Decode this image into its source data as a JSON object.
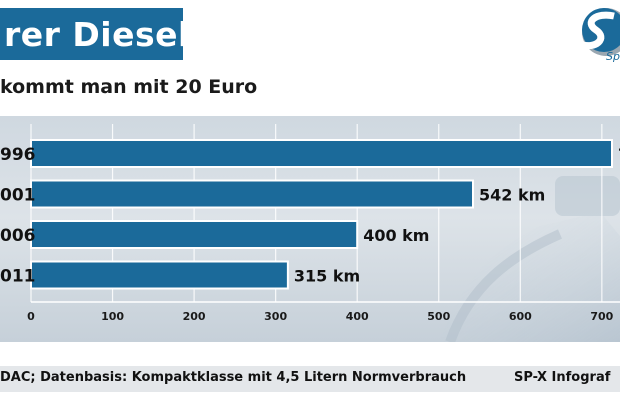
{
  "header": {
    "title": "rer Diesel",
    "subtitle": "kommt man mit 20 Euro",
    "logo_text": "Sp"
  },
  "footer": {
    "source": "DAC; Datenbasis: Kompaktklasse mit 4,5 Litern Normverbrauch",
    "credit": "SP-X Infograf"
  },
  "colors": {
    "title_bg": "#1b6a9a",
    "bar": "#1b6a9a",
    "bar_outline": "#ffffff"
  },
  "chart_data": {
    "type": "bar",
    "orientation": "horizontal",
    "categories": [
      "996",
      "001",
      "006",
      "011"
    ],
    "values": [
      720,
      542,
      400,
      315
    ],
    "labels": [
      "7",
      "542 km",
      "400 km",
      "315 km"
    ],
    "unit": "km",
    "xlim": [
      0,
      720
    ],
    "xticks": [
      0,
      100,
      200,
      300,
      400,
      500,
      600,
      700
    ],
    "grid": true
  }
}
